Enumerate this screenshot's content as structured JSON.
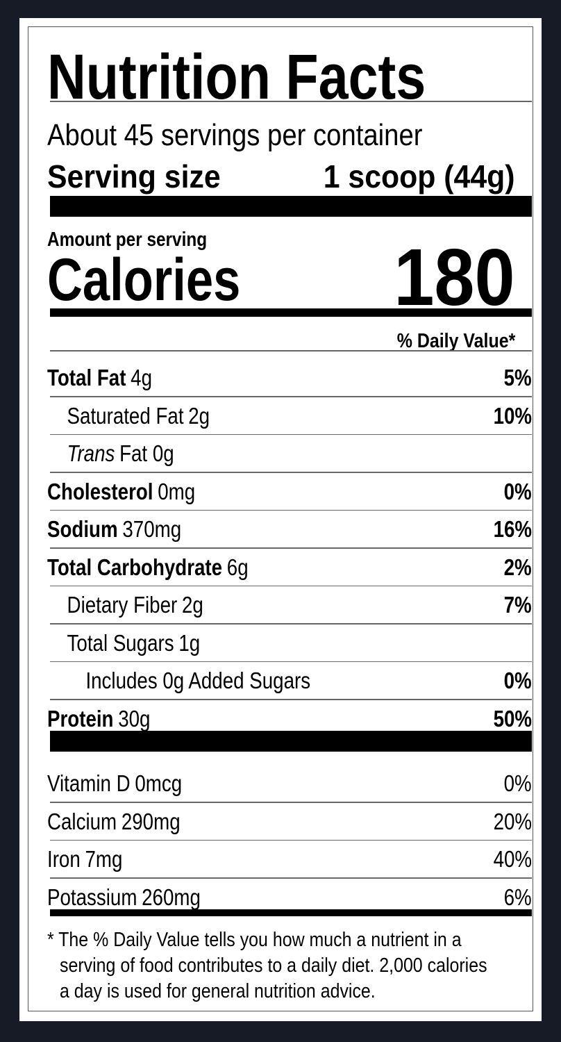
{
  "title": "Nutrition Facts",
  "servings_per_container": "About 45 servings per container",
  "serving_size": {
    "label": "Serving size",
    "value": "1 scoop (44g)"
  },
  "amount_per_serving": "Amount per serving",
  "calories": {
    "label": "Calories",
    "value": "180"
  },
  "daily_value_header": "% Daily Value*",
  "nutrients": [
    {
      "name": "Total Fat",
      "amount": "4g",
      "dv": "5%",
      "bold": true,
      "indent": 0
    },
    {
      "name": "Saturated Fat",
      "amount": "2g",
      "dv": "10%",
      "bold": false,
      "indent": 1
    },
    {
      "name": "Trans",
      "amount": "Fat 0g",
      "dv": "",
      "bold": false,
      "indent": 1
    },
    {
      "name": "Cholesterol",
      "amount": "0mg",
      "dv": "0%",
      "bold": true,
      "indent": 0
    },
    {
      "name": "Sodium",
      "amount": "370mg",
      "dv": "16%",
      "bold": true,
      "indent": 0
    },
    {
      "name": "Total Carbohydrate",
      "amount": "6g",
      "dv": "2%",
      "bold": true,
      "indent": 0
    },
    {
      "name": "Dietary Fiber",
      "amount": "2g",
      "dv": "7%",
      "bold": false,
      "indent": 1
    },
    {
      "name": "Total Sugars",
      "amount": "1g",
      "dv": "",
      "bold": false,
      "indent": 1
    },
    {
      "name": "Includes 0g Added Sugars",
      "amount": "",
      "dv": "0%",
      "bold": false,
      "indent": 2
    },
    {
      "name": "Protein",
      "amount": "30g",
      "dv": "50%",
      "bold": true,
      "indent": 0
    }
  ],
  "vitamins": [
    {
      "name": "Vitamin D",
      "amount": "0mcg",
      "dv": "0%"
    },
    {
      "name": "Calcium",
      "amount": "290mg",
      "dv": "20%"
    },
    {
      "name": "Iron",
      "amount": "7mg",
      "dv": "40%"
    },
    {
      "name": "Potassium",
      "amount": "260mg",
      "dv": "6%"
    }
  ],
  "footnote": {
    "line1": "* The % Daily Value tells you how much a nutrient in a",
    "line2": "serving of food contributes to a daily diet. 2,000 calories",
    "line3": "a day is used for general nutrition advice."
  }
}
